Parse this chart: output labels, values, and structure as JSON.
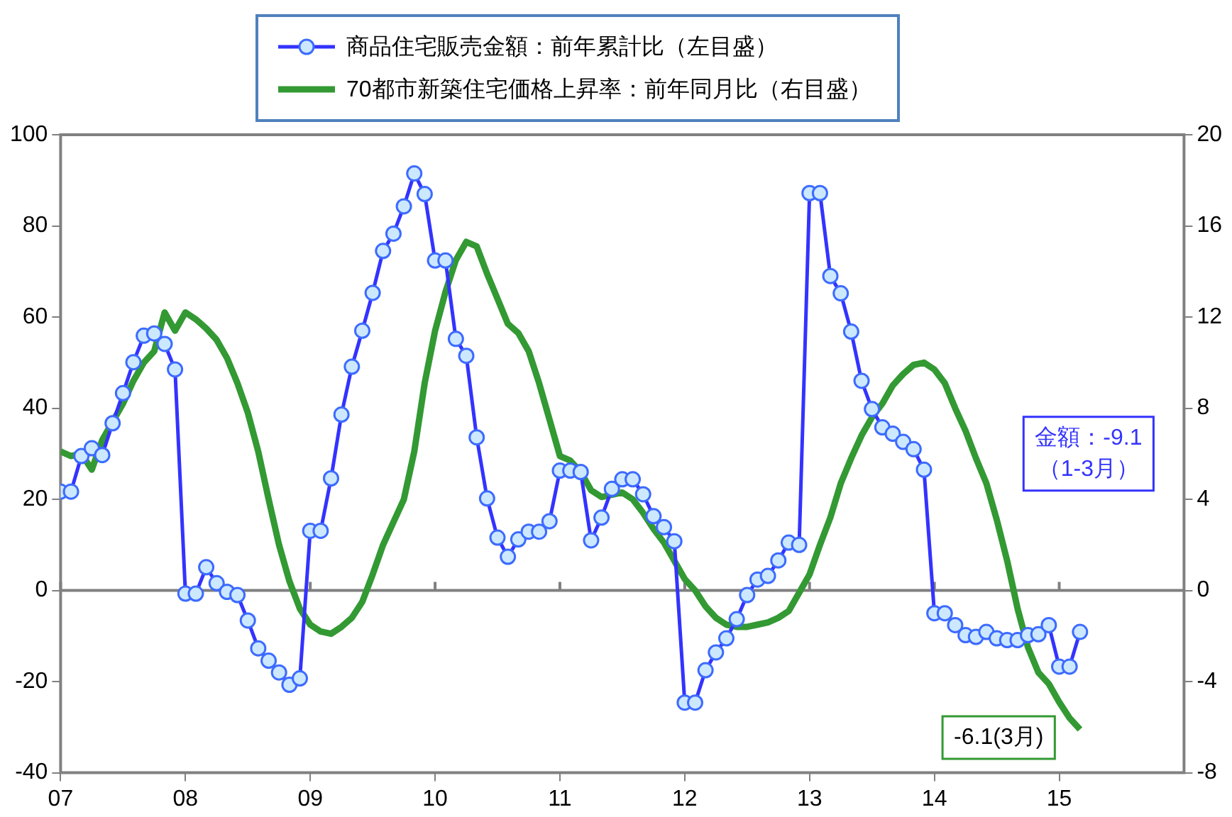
{
  "chart_data": {
    "type": "line",
    "x": [
      "2007-01",
      "2007-02",
      "2007-03",
      "2007-04",
      "2007-05",
      "2007-06",
      "2007-07",
      "2007-08",
      "2007-09",
      "2007-10",
      "2007-11",
      "2007-12",
      "2008-01",
      "2008-02",
      "2008-03",
      "2008-04",
      "2008-05",
      "2008-06",
      "2008-07",
      "2008-08",
      "2008-09",
      "2008-10",
      "2008-11",
      "2008-12",
      "2009-01",
      "2009-02",
      "2009-03",
      "2009-04",
      "2009-05",
      "2009-06",
      "2009-07",
      "2009-08",
      "2009-09",
      "2009-10",
      "2009-11",
      "2009-12",
      "2010-01",
      "2010-02",
      "2010-03",
      "2010-04",
      "2010-05",
      "2010-06",
      "2010-07",
      "2010-08",
      "2010-09",
      "2010-10",
      "2010-11",
      "2010-12",
      "2011-01",
      "2011-02",
      "2011-03",
      "2011-04",
      "2011-05",
      "2011-06",
      "2011-07",
      "2011-08",
      "2011-09",
      "2011-10",
      "2011-11",
      "2011-12",
      "2012-01",
      "2012-02",
      "2012-03",
      "2012-04",
      "2012-05",
      "2012-06",
      "2012-07",
      "2012-08",
      "2012-09",
      "2012-10",
      "2012-11",
      "2012-12",
      "2013-01",
      "2013-02",
      "2013-03",
      "2013-04",
      "2013-05",
      "2013-06",
      "2013-07",
      "2013-08",
      "2013-09",
      "2013-10",
      "2013-11",
      "2013-12",
      "2014-01",
      "2014-02",
      "2014-03",
      "2014-04",
      "2014-05",
      "2014-06",
      "2014-07",
      "2014-08",
      "2014-09",
      "2014-10",
      "2014-11",
      "2014-12",
      "2015-01",
      "2015-02",
      "2015-03"
    ],
    "series": [
      {
        "name": "商品住宅販売金額：前年累計比（左目盛）",
        "color": "#3333ff",
        "marker": "circle",
        "values": [
          21.7,
          21.7,
          29.5,
          31.2,
          29.7,
          36.7,
          43.3,
          50.1,
          55.9,
          56.4,
          54.1,
          48.5,
          -0.7,
          -0.7,
          5.1,
          1.6,
          -0.3,
          -1.0,
          -6.6,
          -12.7,
          -15.4,
          -18.0,
          -20.7,
          -19.3,
          13.1,
          13.1,
          24.6,
          38.6,
          49.1,
          57.0,
          65.3,
          74.5,
          78.3,
          84.3,
          91.5,
          87.0,
          72.4,
          72.4,
          55.2,
          51.5,
          33.6,
          20.2,
          11.6,
          7.4,
          11.2,
          12.9,
          12.9,
          15.2,
          26.3,
          26.3,
          26.0,
          11.0,
          16.0,
          22.3,
          24.4,
          24.4,
          21.1,
          16.3,
          13.9,
          10.8,
          -24.6,
          -24.6,
          -17.5,
          -13.6,
          -10.5,
          -6.3,
          -1.0,
          2.4,
          3.2,
          6.6,
          10.5,
          10.0,
          87.2,
          87.2,
          69.0,
          65.2,
          56.8,
          46.0,
          39.8,
          35.8,
          34.4,
          32.6,
          31.0,
          26.5,
          -5.0,
          -5.0,
          -7.6,
          -9.8,
          -10.2,
          -9.1,
          -10.5,
          -10.9,
          -10.9,
          -9.8,
          -9.6,
          -7.6,
          -16.7,
          -16.7,
          -9.1
        ]
      },
      {
        "name": "70都市新築住宅価格上昇率：前年同月比（右目盛）",
        "color": "#339933",
        "marker": "none",
        "axis": "y2",
        "values": [
          6.1,
          5.9,
          6.0,
          5.3,
          6.6,
          7.4,
          8.2,
          9.2,
          10.0,
          10.5,
          12.2,
          11.4,
          12.2,
          11.9,
          11.5,
          11.0,
          10.2,
          9.1,
          7.8,
          6.1,
          4.0,
          2.0,
          0.4,
          -0.8,
          -1.5,
          -1.8,
          -1.9,
          -1.6,
          -1.2,
          -0.5,
          0.7,
          2.0,
          3.0,
          4.0,
          6.1,
          9.1,
          11.4,
          13.1,
          14.5,
          15.3,
          15.1,
          13.9,
          12.8,
          11.7,
          11.3,
          10.5,
          9.1,
          7.5,
          5.9,
          5.7,
          5.2,
          4.4,
          4.1,
          4.2,
          4.3,
          4.0,
          3.4,
          2.7,
          2.1,
          1.3,
          0.5,
          0.0,
          -0.7,
          -1.2,
          -1.5,
          -1.6,
          -1.6,
          -1.5,
          -1.4,
          -1.2,
          -0.9,
          -0.1,
          0.7,
          2.0,
          3.2,
          4.7,
          5.8,
          6.8,
          7.6,
          8.2,
          9.0,
          9.5,
          9.9,
          10.0,
          9.7,
          9.1,
          8.0,
          7.0,
          5.8,
          4.7,
          3.1,
          1.3,
          -0.8,
          -2.5,
          -3.6,
          -4.1,
          -4.9,
          -5.6,
          -6.1
        ]
      }
    ],
    "xlim": [
      "2007-01",
      "2016-01"
    ],
    "xticks": [
      {
        "value": "2007-01",
        "label": "07"
      },
      {
        "value": "2008-01",
        "label": "08"
      },
      {
        "value": "2009-01",
        "label": "09"
      },
      {
        "value": "2010-01",
        "label": "10"
      },
      {
        "value": "2011-01",
        "label": "11"
      },
      {
        "value": "2012-01",
        "label": "12"
      },
      {
        "value": "2013-01",
        "label": "13"
      },
      {
        "value": "2014-01",
        "label": "14"
      },
      {
        "value": "2015-01",
        "label": "15"
      }
    ],
    "ylim": [
      -40,
      100
    ],
    "yticks": [
      -40,
      -20,
      0,
      20,
      40,
      60,
      80,
      100
    ],
    "y2lim": [
      -8,
      20
    ],
    "y2ticks": [
      -8,
      -4,
      0,
      4,
      8,
      12,
      16,
      20
    ],
    "ref_lines": [
      {
        "axis": "y",
        "value": 0,
        "color": "#808080"
      }
    ],
    "legend": "top",
    "annotations": [
      "金額：-9.1\n（1-3月）",
      "-6.1(3月)"
    ]
  }
}
